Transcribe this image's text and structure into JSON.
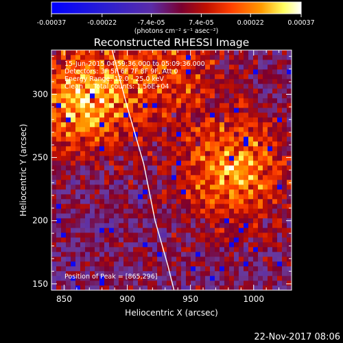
{
  "colorbar": {
    "tick_labels": [
      "-0.00037",
      "-0.00022",
      "-7.4e-05",
      "7.4e-05",
      "0.00022",
      "0.00037"
    ],
    "tick_values": [
      -0.00037,
      -0.00022,
      -7.4e-05,
      7.4e-05,
      0.00022,
      0.00037
    ],
    "range": [
      -0.00037,
      0.00037
    ],
    "units": "(photons cm⁻² s⁻¹ asec⁻²)"
  },
  "chart_data": {
    "type": "heatmap",
    "title": "Reconstructed RHESSI Image",
    "xlabel": "Heliocentric X (arcsec)",
    "ylabel": "Heliocentric Y (arcsec)",
    "xlim": [
      840,
      1030
    ],
    "ylim": [
      145,
      335
    ],
    "x_ticks": [
      850,
      900,
      950,
      1000
    ],
    "y_ticks": [
      150,
      200,
      250,
      300
    ],
    "x_tick_labels": [
      "850",
      "900",
      "950",
      "1000"
    ],
    "y_tick_labels": [
      "150",
      "200",
      "250",
      "300"
    ],
    "grid": false,
    "colormap": [
      "#0000ff",
      "#5a2ca8",
      "#6a3a9a",
      "#7a0030",
      "#c01000",
      "#ff4000",
      "#ff9a00",
      "#ffff60",
      "#ffffff"
    ],
    "annotations": [
      "15-Jun-2015 04:59:36.000 to 05:09:36.000",
      "Detectors: 3F 5F 6F 7F 8F 9F, Att 0",
      "Energy Range: 12.0 - 25.0 keV",
      "Clean     Total counts: 1.56E+04",
      "Position of Peak = [865,296]"
    ],
    "peak_position": [
      865,
      296
    ],
    "bright_regions": [
      {
        "x": 865,
        "y": 296,
        "intensity": 1.0
      },
      {
        "x": 985,
        "y": 240,
        "intensity": 0.9
      },
      {
        "x": 935,
        "y": 322,
        "intensity": 0.5
      }
    ],
    "limb_arc": [
      [
        888,
        335
      ],
      [
        900,
        290
      ],
      [
        913,
        245
      ],
      [
        922,
        200
      ],
      [
        932,
        165
      ],
      [
        937,
        145
      ]
    ]
  },
  "timestamp": "22-Nov-2017 08:06"
}
